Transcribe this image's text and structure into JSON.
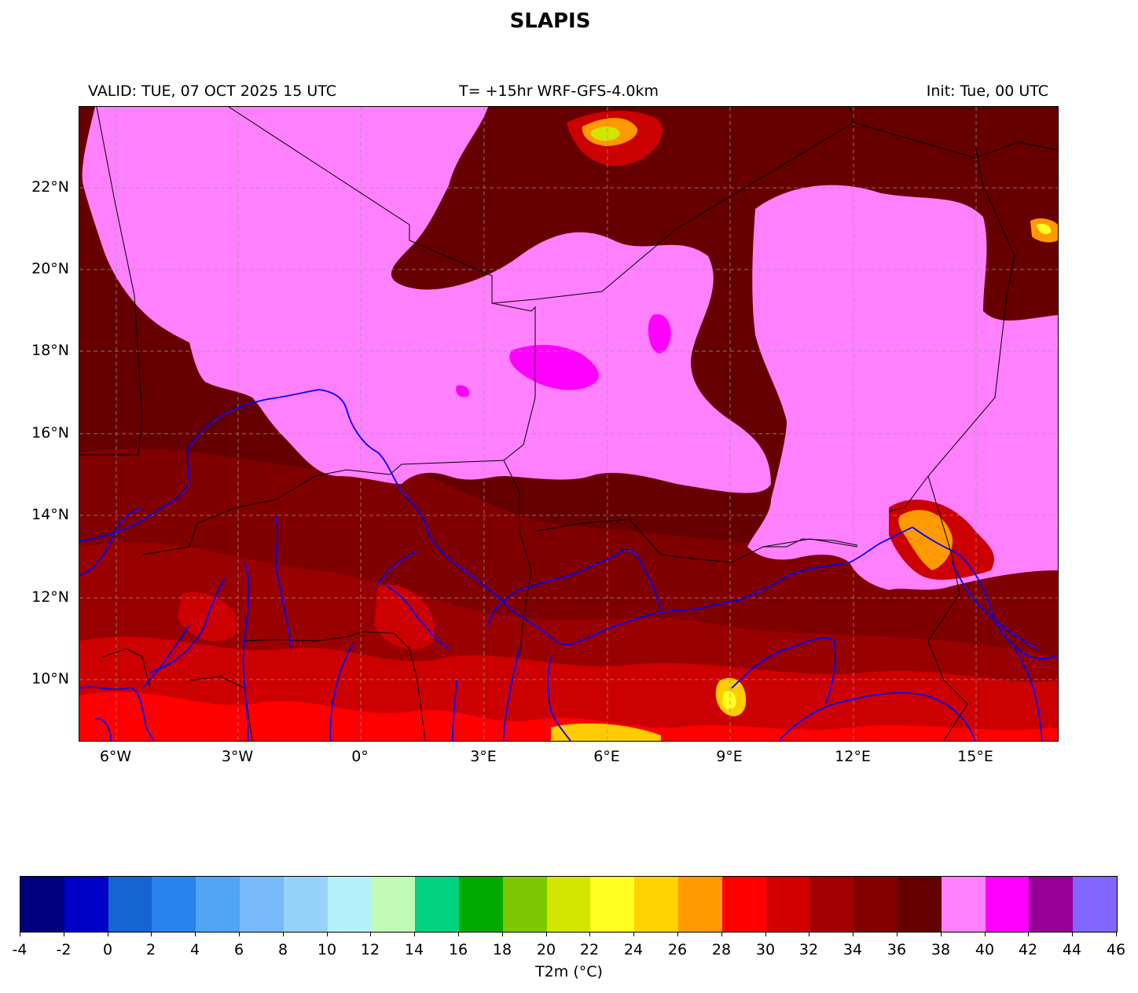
{
  "title": "SLAPIS",
  "header": {
    "valid": "VALID: TUE, 07 OCT 2025 15 UTC",
    "model": "T= +15hr WRF-GFS-4.0km",
    "init": "Init: Tue, 00 UTC"
  },
  "map": {
    "lon_labels": [
      "6°W",
      "3°W",
      "0°",
      "3°E",
      "6°E",
      "9°E",
      "12°E",
      "15°E"
    ],
    "lat_labels": [
      "22°N",
      "20°N",
      "18°N",
      "16°N",
      "14°N",
      "12°N",
      "10°N"
    ],
    "colors": {
      "very_hot": "#ff80ff",
      "extreme": "#ff00ff",
      "dark_maroon": "#660000",
      "maroon": "#800000",
      "dark_red": "#990000",
      "red2": "#cc0000",
      "red": "#ff0000",
      "orange": "#ff9900",
      "gold": "#ffcc00",
      "yellow": "#ffff22",
      "river": "#0000ff",
      "border": "#000000"
    }
  },
  "colorbar": {
    "label": "T2m (°C)",
    "ticks": [
      "-4",
      "-2",
      "0",
      "2",
      "4",
      "6",
      "8",
      "10",
      "12",
      "14",
      "16",
      "18",
      "20",
      "22",
      "24",
      "26",
      "28",
      "30",
      "32",
      "34",
      "36",
      "38",
      "40",
      "42",
      "44",
      "46"
    ],
    "colors": [
      "#000080",
      "#0000c8",
      "#1464d2",
      "#2882f0",
      "#50a5f5",
      "#78b9fa",
      "#96d2fa",
      "#b4f0fa",
      "#c0fab4",
      "#00d282",
      "#00aa00",
      "#7dc800",
      "#d2e600",
      "#ffff22",
      "#ffd200",
      "#ff9b00",
      "#ff0000",
      "#d20000",
      "#a00000",
      "#820000",
      "#640000",
      "#ff80ff",
      "#ff00ff",
      "#960096",
      "#8266ff"
    ]
  }
}
